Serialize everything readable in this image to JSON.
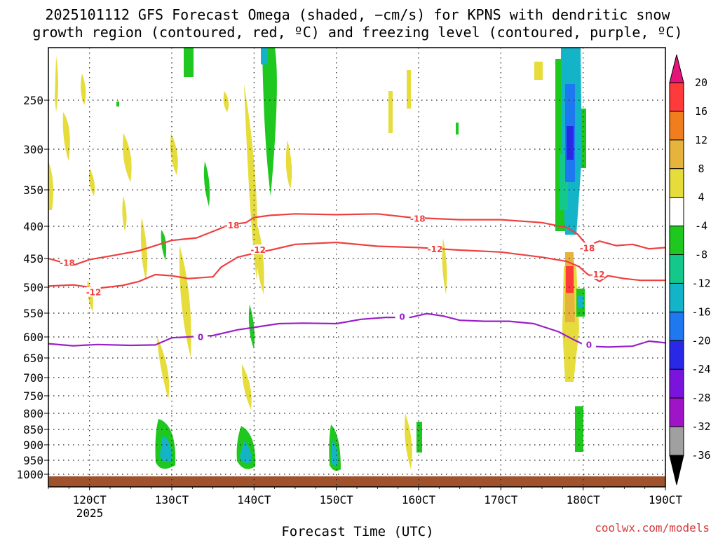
{
  "title_line1": "2025101112 GFS Forecast Omega (shaded, −cm/s) for KPNS with dendritic snow",
  "title_line2": "growth region (contoured, red, ºC) and freezing level (contoured, purple, ºC)",
  "credit": "coolwx.com/models",
  "colors": {
    "dsr": "#ee4040",
    "freezing": "#9a20c8",
    "ground": "#a0522d"
  },
  "chart_data": {
    "type": "heatmap",
    "title": "2025101112 GFS Forecast Omega for KPNS",
    "xlabel": "Forecast Time (UTC)",
    "xlabel_year": "2025",
    "x_ticks": [
      {
        "value": 12,
        "label": "120CT"
      },
      {
        "value": 13,
        "label": "130CT"
      },
      {
        "value": 14,
        "label": "140CT"
      },
      {
        "value": 15,
        "label": "150CT"
      },
      {
        "value": 16,
        "label": "160CT"
      },
      {
        "value": 17,
        "label": "170CT"
      },
      {
        "value": 18,
        "label": "180CT"
      },
      {
        "value": 19,
        "label": "190CT"
      }
    ],
    "xlim": [
      11.5,
      19.0
    ],
    "ylim_hpa": [
      1035,
      200
    ],
    "y_ticks": [
      250,
      300,
      350,
      400,
      450,
      500,
      550,
      600,
      650,
      700,
      750,
      800,
      850,
      900,
      950,
      1000
    ],
    "colorbar": {
      "ticks": [
        20,
        16,
        12,
        8,
        4,
        -4,
        -8,
        -12,
        -16,
        -20,
        -24,
        -28,
        -32,
        -36
      ],
      "bands": [
        {
          "range": "16 to 20",
          "color": "#ff3a3a"
        },
        {
          "range": "12 to 16",
          "color": "#f07e1e"
        },
        {
          "range": "8 to 12",
          "color": "#e6b43c"
        },
        {
          "range": "4 to 8",
          "color": "#e6dc3c"
        },
        {
          "range": "-4 to 4",
          "color": "#ffffff"
        },
        {
          "range": "-8 to -4",
          "color": "#1ec81e"
        },
        {
          "range": "-12 to -8",
          "color": "#14c88c"
        },
        {
          "range": "-16 to -12",
          "color": "#14b4c8"
        },
        {
          "range": "-20 to -16",
          "color": "#1e78f0"
        },
        {
          "range": "-24 to -20",
          "color": "#2828e6"
        },
        {
          "range": "-28 to -24",
          "color": "#7a14dc"
        },
        {
          "range": "-32 to -28",
          "color": "#a014c8"
        },
        {
          "range": "-36 to -32",
          "color": "#a0a0a0"
        }
      ],
      "top_arrow_color": "#e6147a",
      "bottom_arrow_color": "#000000"
    },
    "contours": [
      {
        "label": "-18",
        "color": "#ee4040",
        "label_positions": [
          [
            11.73,
            458
          ],
          [
            13.73,
            399
          ],
          [
            15.99,
            390
          ],
          [
            18.05,
            434
          ]
        ],
        "points": [
          [
            11.5,
            450
          ],
          [
            11.8,
            462
          ],
          [
            12.0,
            452
          ],
          [
            12.3,
            445
          ],
          [
            12.6,
            438
          ],
          [
            12.75,
            432
          ],
          [
            13.0,
            422
          ],
          [
            13.3,
            418
          ],
          [
            13.5,
            408
          ],
          [
            13.7,
            398
          ],
          [
            13.9,
            395
          ],
          [
            14.0,
            388
          ],
          [
            14.2,
            385
          ],
          [
            14.5,
            383
          ],
          [
            15.0,
            384
          ],
          [
            15.5,
            383
          ],
          [
            15.9,
            388
          ],
          [
            16.5,
            391
          ],
          [
            17.0,
            391
          ],
          [
            17.5,
            395
          ],
          [
            17.8,
            402
          ],
          [
            17.93,
            412
          ],
          [
            18.05,
            430
          ],
          [
            18.2,
            423
          ],
          [
            18.4,
            430
          ],
          [
            18.6,
            428
          ],
          [
            18.8,
            435
          ],
          [
            19.0,
            433
          ]
        ]
      },
      {
        "label": "-12",
        "color": "#ee4040",
        "label_positions": [
          [
            12.05,
            510
          ],
          [
            14.05,
            437
          ],
          [
            16.2,
            436
          ],
          [
            18.17,
            478
          ]
        ],
        "points": [
          [
            11.5,
            498
          ],
          [
            11.8,
            496
          ],
          [
            12.1,
            502
          ],
          [
            12.4,
            497
          ],
          [
            12.6,
            490
          ],
          [
            12.8,
            478
          ],
          [
            13.0,
            480
          ],
          [
            13.2,
            485
          ],
          [
            13.5,
            482
          ],
          [
            13.6,
            465
          ],
          [
            13.8,
            448
          ],
          [
            14.0,
            442
          ],
          [
            14.2,
            437
          ],
          [
            14.5,
            428
          ],
          [
            15.0,
            425
          ],
          [
            15.5,
            431
          ],
          [
            16.0,
            433
          ],
          [
            16.5,
            437
          ],
          [
            17.0,
            440
          ],
          [
            17.5,
            448
          ],
          [
            17.8,
            455
          ],
          [
            17.95,
            464
          ],
          [
            18.05,
            477
          ],
          [
            18.2,
            490
          ],
          [
            18.3,
            480
          ],
          [
            18.5,
            485
          ],
          [
            18.7,
            488
          ],
          [
            19.0,
            488
          ]
        ]
      },
      {
        "label": "0",
        "color": "#9a20c8",
        "label_positions": [
          [
            13.35,
            601
          ],
          [
            15.8,
            558
          ],
          [
            18.07,
            619
          ]
        ],
        "points": [
          [
            11.5,
            616
          ],
          [
            11.8,
            621
          ],
          [
            12.1,
            618
          ],
          [
            12.5,
            620
          ],
          [
            12.8,
            619
          ],
          [
            13.0,
            602
          ],
          [
            13.2,
            600
          ],
          [
            13.5,
            597
          ],
          [
            13.8,
            585
          ],
          [
            14.0,
            580
          ],
          [
            14.3,
            572
          ],
          [
            14.6,
            571
          ],
          [
            15.0,
            572
          ],
          [
            15.3,
            563
          ],
          [
            15.6,
            559
          ],
          [
            15.9,
            559
          ],
          [
            16.1,
            551
          ],
          [
            16.3,
            556
          ],
          [
            16.5,
            565
          ],
          [
            16.8,
            567
          ],
          [
            17.1,
            567
          ],
          [
            17.4,
            572
          ],
          [
            17.7,
            589
          ],
          [
            17.9,
            608
          ],
          [
            18.05,
            622
          ],
          [
            18.3,
            624
          ],
          [
            18.6,
            622
          ],
          [
            18.8,
            610
          ],
          [
            19.0,
            614
          ]
        ]
      }
    ]
  }
}
